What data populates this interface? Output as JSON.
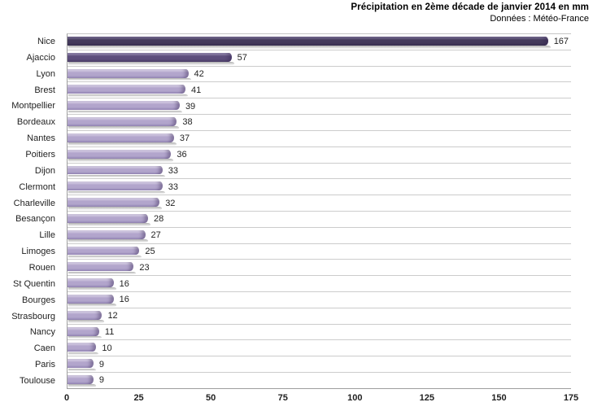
{
  "chart_data": {
    "type": "bar",
    "orientation": "horizontal",
    "title": "Précipitation en 2ème décade de janvier 2014 en mm",
    "subtitle": "Données : Météo-France",
    "xlabel": "",
    "ylabel": "",
    "xlim": [
      0,
      175
    ],
    "x_ticks": [
      0,
      25,
      50,
      75,
      100,
      125,
      150,
      175
    ],
    "grid": "category-separators",
    "legend": "none",
    "categories": [
      "Nice",
      "Ajaccio",
      "Lyon",
      "Brest",
      "Montpellier",
      "Bordeaux",
      "Nantes",
      "Poitiers",
      "Dijon",
      "Clermont",
      "Charleville",
      "Besançon",
      "Lille",
      "Limoges",
      "Rouen",
      "St Quentin",
      "Bourges",
      "Strasbourg",
      "Nancy",
      "Caen",
      "Paris",
      "Toulouse"
    ],
    "values": [
      167,
      57,
      42,
      41,
      39,
      38,
      37,
      36,
      33,
      33,
      32,
      28,
      27,
      25,
      23,
      16,
      16,
      12,
      11,
      10,
      9,
      9
    ],
    "items": [
      {
        "label": "Nice",
        "value": 167,
        "palette": "dark"
      },
      {
        "label": "Ajaccio",
        "value": 57,
        "palette": "medium"
      },
      {
        "label": "Lyon",
        "value": 42,
        "palette": "light"
      },
      {
        "label": "Brest",
        "value": 41,
        "palette": "light"
      },
      {
        "label": "Montpellier",
        "value": 39,
        "palette": "light"
      },
      {
        "label": "Bordeaux",
        "value": 38,
        "palette": "light"
      },
      {
        "label": "Nantes",
        "value": 37,
        "palette": "light"
      },
      {
        "label": "Poitiers",
        "value": 36,
        "palette": "light"
      },
      {
        "label": "Dijon",
        "value": 33,
        "palette": "light"
      },
      {
        "label": "Clermont",
        "value": 33,
        "palette": "light"
      },
      {
        "label": "Charleville",
        "value": 32,
        "palette": "light"
      },
      {
        "label": "Besançon",
        "value": 28,
        "palette": "light"
      },
      {
        "label": "Lille",
        "value": 27,
        "palette": "light"
      },
      {
        "label": "Limoges",
        "value": 25,
        "palette": "light"
      },
      {
        "label": "Rouen",
        "value": 23,
        "palette": "light"
      },
      {
        "label": "St Quentin",
        "value": 16,
        "palette": "light"
      },
      {
        "label": "Bourges",
        "value": 16,
        "palette": "light"
      },
      {
        "label": "Strasbourg",
        "value": 12,
        "palette": "light"
      },
      {
        "label": "Nancy",
        "value": 11,
        "palette": "light"
      },
      {
        "label": "Caen",
        "value": 10,
        "palette": "light"
      },
      {
        "label": "Paris",
        "value": 9,
        "palette": "light"
      },
      {
        "label": "Toulouse",
        "value": 9,
        "palette": "light"
      }
    ]
  },
  "colors": {
    "background": "#ffffff",
    "text": "#1f1f1f",
    "gridline": "#cccccc",
    "axis_line": "#9e9e9e",
    "bar_palettes": {
      "dark": {
        "top": "#6e6488",
        "body": "#443a5c",
        "bottom": "#393050"
      },
      "medium": {
        "top": "#8d82a8",
        "body": "#5d4e7c",
        "bottom": "#4c3f68"
      },
      "light": {
        "top": "#d8d0e7",
        "body": "#b2a5cc",
        "bottom": "#9c8ebd"
      }
    }
  }
}
